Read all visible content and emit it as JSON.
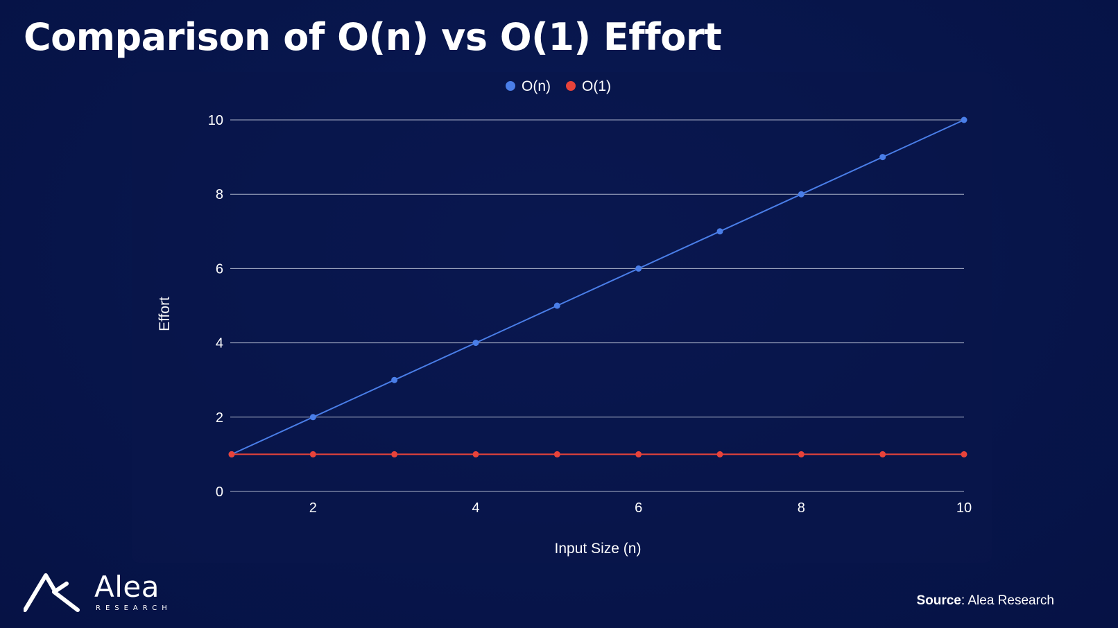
{
  "title": "Comparison of O(n) vs O(1) Effort",
  "source": {
    "label": "Source",
    "text": ": Alea Research"
  },
  "logo": {
    "name": "Alea",
    "sub": "RESEARCH"
  },
  "colors": {
    "background": "#07154a",
    "series_on": "#4a7ee8",
    "series_o1": "#e8433a",
    "grid": "#c9cfe0"
  },
  "chart_data": {
    "type": "line",
    "title": "Comparison of O(n) vs O(1) Effort",
    "xlabel": "Input Size (n)",
    "ylabel": "Effort",
    "xlim": [
      1,
      10
    ],
    "ylim": [
      0,
      10
    ],
    "xticks": [
      2,
      4,
      6,
      8,
      10
    ],
    "yticks": [
      0,
      2,
      4,
      6,
      8,
      10
    ],
    "grid": true,
    "legend": "top-center",
    "x": [
      1,
      2,
      3,
      4,
      5,
      6,
      7,
      8,
      9,
      10
    ],
    "series": [
      {
        "name": "O(n)",
        "color": "#4a7ee8",
        "values": [
          1,
          2,
          3,
          4,
          5,
          6,
          7,
          8,
          9,
          10
        ]
      },
      {
        "name": "O(1)",
        "color": "#e8433a",
        "values": [
          1,
          1,
          1,
          1,
          1,
          1,
          1,
          1,
          1,
          1
        ]
      }
    ]
  }
}
